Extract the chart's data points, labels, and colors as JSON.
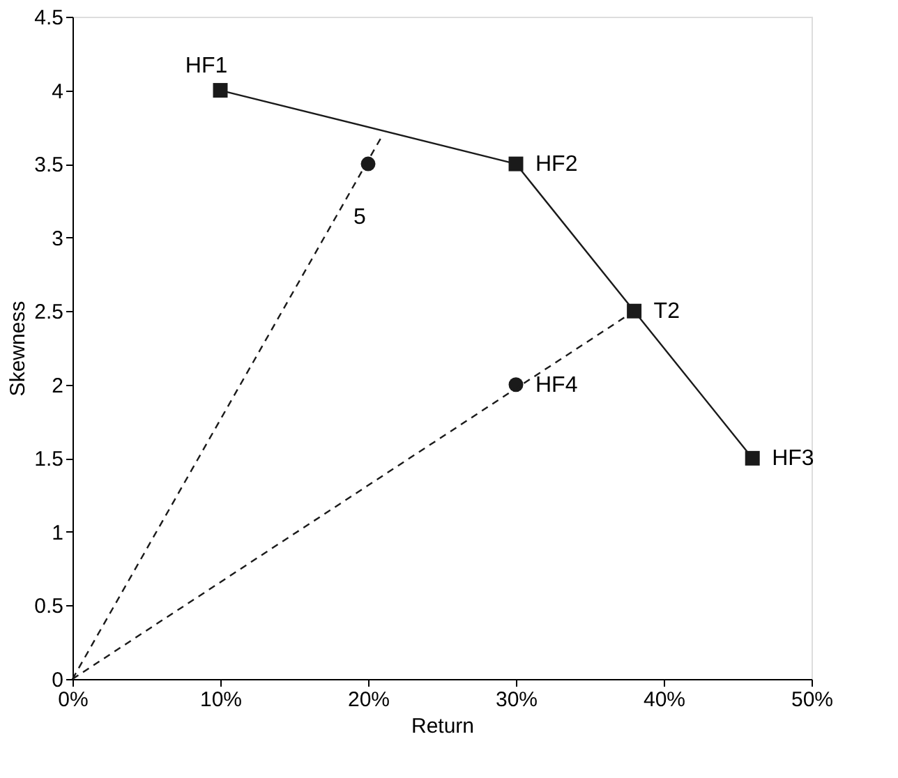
{
  "chart_data": {
    "type": "line",
    "xlabel": "Return",
    "ylabel": "Skewness",
    "xlim": [
      0,
      50
    ],
    "ylim": [
      0,
      4.5
    ],
    "xticks": [
      {
        "value": 0,
        "label": "0%"
      },
      {
        "value": 10,
        "label": "10%"
      },
      {
        "value": 20,
        "label": "20%"
      },
      {
        "value": 30,
        "label": "30%"
      },
      {
        "value": 40,
        "label": "40%"
      },
      {
        "value": 50,
        "label": "50%"
      }
    ],
    "yticks": [
      0,
      0.5,
      1,
      1.5,
      2,
      2.5,
      3,
      3.5,
      4,
      4.5
    ],
    "grid": false,
    "series": [
      {
        "color": "#1a1a1a",
        "x": [
          10,
          30,
          38,
          46
        ],
        "values": [
          4,
          3.5,
          2.5,
          1.5
        ],
        "marker": "square",
        "line_style": "solid"
      },
      {
        "type": "scatter",
        "color": "#1a1a1a",
        "x": [
          20,
          30
        ],
        "values": [
          3.5,
          2
        ],
        "marker": "circle"
      },
      {
        "color": "#1a1a1a",
        "x": [
          0,
          21
        ],
        "values": [
          0,
          3.7
        ],
        "marker": "none",
        "line_style": "dashed"
      },
      {
        "color": "#1a1a1a",
        "x": [
          0,
          38
        ],
        "values": [
          0,
          2.5
        ],
        "marker": "none",
        "line_style": "dashed"
      }
    ],
    "annotations": [
      {
        "text": "HF1",
        "x": 10,
        "y": 4
      },
      {
        "text": "HF2",
        "x": 30,
        "y": 3.5
      },
      {
        "text": "T2",
        "x": 38,
        "y": 2.5
      },
      {
        "text": "HF3",
        "x": 46,
        "y": 1.5
      },
      {
        "text": "HF4",
        "x": 30,
        "y": 2
      },
      {
        "text": "5",
        "x": 20,
        "y": 3.5
      }
    ]
  }
}
